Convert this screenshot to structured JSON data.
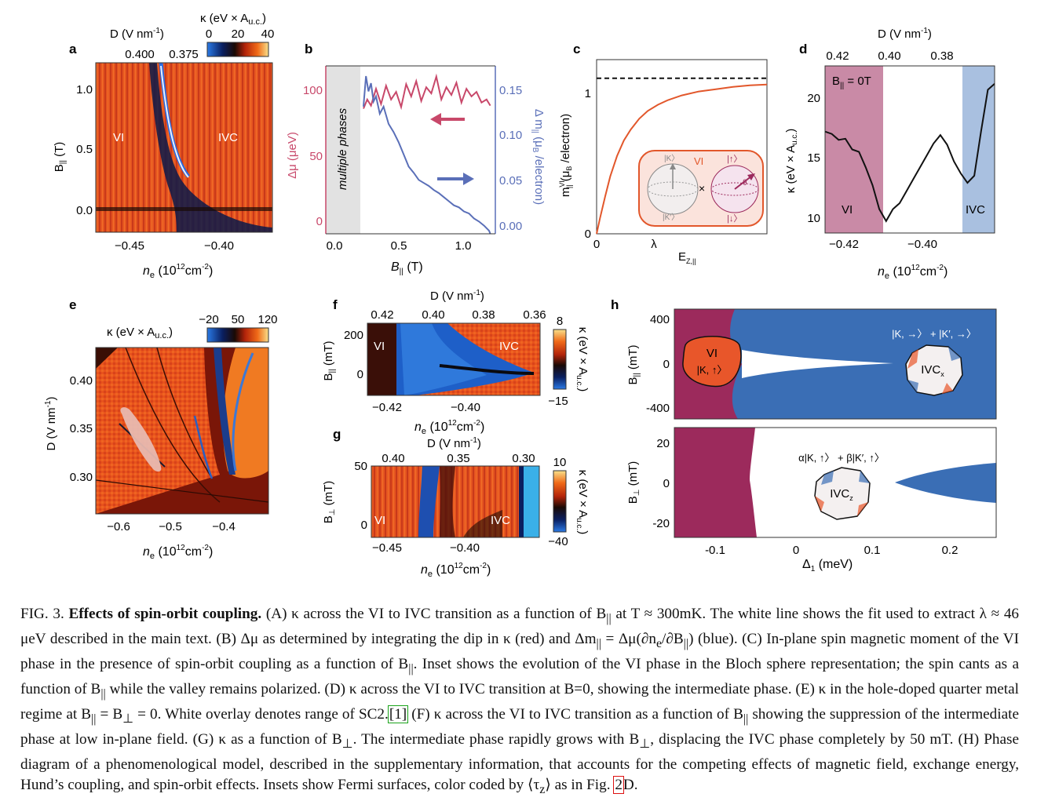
{
  "figure": {
    "panels": {
      "a": {
        "letter": "a",
        "colorbar_title": "κ (eV × A",
        "colorbar_title_sub": "u.c.",
        "colorbar_ticks": [
          "0",
          "20",
          "40"
        ],
        "top_axis_title": "D (V nm",
        "top_axis_title_sup": "-1",
        "top_ticks": [
          "0.400",
          "0.375"
        ],
        "ylabel": "B",
        "ylabel_sub": "||",
        "ylabel_unit": " (T)",
        "y_ticks": [
          "1.0",
          "0.5",
          "0.0"
        ],
        "x_ticks": [
          "−0.45",
          "−0.40"
        ],
        "xlabel": "n",
        "xlabel_sub": "e",
        "xlabel_unit": " (10",
        "xlabel_sup": "12",
        "xlabel_end": "cm",
        "xlabel_sup2": "-2",
        "xlabel_close": ")",
        "label_vi": "VI",
        "label_ivc": "IVC"
      },
      "b": {
        "letter": "b",
        "left_ticks": [
          "100",
          "50",
          "0"
        ],
        "right_ticks": [
          "0.15",
          "0.10",
          "0.05",
          "0.00"
        ],
        "x_ticks": [
          "0.0",
          "0.5",
          "1.0"
        ],
        "xlabel": "B",
        "xlabel_sub": "||",
        "xlabel_unit": " (T)",
        "ylabel_left": "Δμ (μeV)",
        "ylabel_right": "Δ m",
        "ylabel_right_sub": "||",
        "ylabel_right_unit": " (μ",
        "ylabel_right_unit_sub": "B",
        "ylabel_right_end": " /electron)",
        "shaded_label": "multiple phases",
        "chart_data": {
          "type": "line",
          "xlim": [
            -0.1,
            1.25
          ],
          "ylim_left": [
            0,
            110
          ],
          "ylim_right": [
            0.0,
            0.165
          ],
          "series": [
            {
              "axis": "left",
              "color": "#c8486a",
              "x": [
                0.2,
                0.23,
                0.26,
                0.3,
                0.34,
                0.38,
                0.42,
                0.46,
                0.5,
                0.54,
                0.58,
                0.62,
                0.66,
                0.7,
                0.74,
                0.78,
                0.82,
                0.86,
                0.9,
                0.94,
                0.98,
                1.02,
                1.06,
                1.1,
                1.14,
                1.18,
                1.21
              ],
              "y": [
                82,
                88,
                84,
                95,
                85,
                97,
                88,
                93,
                83,
                98,
                90,
                100,
                87,
                96,
                92,
                103,
                88,
                96,
                91,
                99,
                86,
                95,
                90,
                93,
                86,
                88,
                84
              ]
            },
            {
              "axis": "right",
              "color": "#5a6fb8",
              "x": [
                0.2,
                0.22,
                0.24,
                0.26,
                0.28,
                0.3,
                0.33,
                0.36,
                0.4,
                0.44,
                0.48,
                0.52,
                0.56,
                0.6,
                0.64,
                0.68,
                0.72,
                0.76,
                0.8,
                0.84,
                0.88,
                0.92,
                0.96,
                1.0,
                1.04,
                1.08,
                1.12,
                1.16,
                1.2,
                1.21
              ],
              "y": [
                0.125,
                0.155,
                0.14,
                0.148,
                0.13,
                0.135,
                0.118,
                0.125,
                0.108,
                0.1,
                0.09,
                0.078,
                0.066,
                0.06,
                0.053,
                0.05,
                0.047,
                0.043,
                0.04,
                0.036,
                0.032,
                0.028,
                0.026,
                0.022,
                0.02,
                0.015,
                0.012,
                0.008,
                0.003,
                0.0
              ]
            }
          ]
        }
      },
      "c": {
        "letter": "c",
        "y_tick_one": "1",
        "y_tick_zero": "0",
        "x_tick_zero": "0",
        "x_tick_lambda": "λ",
        "xlabel": "E",
        "xlabel_sub": "Z,||",
        "ylabel": "m",
        "ylabel_sup": "VI",
        "ylabel_sub": "||",
        "ylabel_unit": " (μ",
        "ylabel_unit_sub": "B",
        "ylabel_end": " /electron)",
        "inset_vi": "VI",
        "inset_k": "|K〉",
        "inset_kp": "|K′〉",
        "inset_up": "|↑〉",
        "inset_down": "|↓〉",
        "inset_theta": "θ",
        "inset_times": "×",
        "chart_data": {
          "type": "line",
          "xlim": [
            0,
            1
          ],
          "ylim": [
            0,
            1.12
          ],
          "series": [
            {
              "name": "",
              "color": "#e2572b",
              "x": [
                0,
                0.02,
                0.05,
                0.08,
                0.12,
                0.16,
                0.2,
                0.25,
                0.3,
                0.36,
                0.42,
                0.5,
                0.6,
                0.7,
                0.8,
                0.9,
                1.0
              ],
              "y": [
                0,
                0.1,
                0.24,
                0.37,
                0.5,
                0.6,
                0.67,
                0.74,
                0.79,
                0.83,
                0.86,
                0.89,
                0.915,
                0.93,
                0.945,
                0.955,
                0.96
              ]
            },
            {
              "name": "",
              "color": "#111111",
              "dashed": true,
              "x": [
                0,
                1
              ],
              "y": [
                1,
                1
              ]
            }
          ]
        }
      },
      "d": {
        "letter": "d",
        "top_axis_title": "D (V nm",
        "top_axis_title_sup": "-1",
        "top_ticks": [
          "0.42",
          "0.40",
          "0.38"
        ],
        "field_label": "B",
        "field_label_sub": "||",
        "field_label_value": " = 0T",
        "y_ticks": [
          "20",
          "15",
          "10"
        ],
        "x_ticks": [
          "−0.42",
          "−0.40"
        ],
        "ylabel": "κ (eV × A",
        "ylabel_sub": "u.c.",
        "ylabel_end": ")",
        "xlabel": "n",
        "xlabel_sub": "e",
        "xlabel_unit": " (10",
        "xlabel_sup": "12",
        "xlabel_end": "cm",
        "xlabel_sup2": "-2",
        "xlabel_close": ")",
        "label_vi": "VI",
        "label_ivc": "IVC",
        "vi_color": "#c98aa6",
        "ivc_color": "#a9c0e0",
        "chart_data": {
          "type": "line",
          "xlim": [
            -0.43,
            -0.38
          ],
          "ylim": [
            9,
            23
          ],
          "series": [
            {
              "name": "",
              "color": "#111111",
              "x": [
                -0.43,
                -0.428,
                -0.426,
                -0.424,
                -0.422,
                -0.42,
                -0.418,
                -0.416,
                -0.414,
                -0.412,
                -0.41,
                -0.408,
                -0.406,
                -0.404,
                -0.402,
                -0.4,
                -0.398,
                -0.396,
                -0.394,
                -0.392,
                -0.39,
                -0.388,
                -0.386,
                -0.384,
                -0.382,
                -0.38
              ],
              "y": [
                17.5,
                17.3,
                16.8,
                16.9,
                16,
                15.8,
                14.5,
                13,
                11,
                10,
                11,
                11.5,
                12.5,
                13.5,
                14.5,
                15.5,
                16.5,
                17.2,
                16.4,
                15,
                14,
                13.2,
                13.8,
                17.5,
                21,
                21.5
              ]
            }
          ]
        }
      },
      "e": {
        "letter": "e",
        "colorbar_title": "κ (eV × A",
        "colorbar_title_sub": "u.c.",
        "colorbar_ticks": [
          "−20",
          "50",
          "120"
        ],
        "y_ticks": [
          "0.40",
          "0.35",
          "0.30"
        ],
        "x_ticks": [
          "−0.6",
          "−0.5",
          "−0.4"
        ],
        "ylabel": "D (V nm",
        "ylabel_sup": "-1",
        "xlabel": "n",
        "xlabel_sub": "e",
        "xlabel_unit": " (10",
        "xlabel_sup": "12",
        "xlabel_end": "cm",
        "xlabel_sup2": "-2",
        "xlabel_close": ")"
      },
      "f": {
        "letter": "f",
        "top_axis_title": "D (V nm",
        "top_axis_title_sup": "-1",
        "top_ticks": [
          "0.42",
          "0.40",
          "0.38",
          "0.36"
        ],
        "y_ticks": [
          "200",
          "0"
        ],
        "x_ticks": [
          "−0.42",
          "−0.40"
        ],
        "colorbar_ticks": [
          "8",
          "−15"
        ],
        "ylabel": "B",
        "ylabel_sub": "||",
        "ylabel_unit": " (mT)",
        "xlabel": "n",
        "xlabel_sub": "e",
        "xlabel_unit": " (10",
        "xlabel_sup": "12",
        "xlabel_end": "cm",
        "xlabel_sup2": "-2",
        "xlabel_close": ")",
        "cb_label": "κ (eV × A",
        "cb_label_sub": "u.c.",
        "cb_label_end": ")",
        "label_vi": "VI",
        "label_ivc": "IVC"
      },
      "g": {
        "letter": "g",
        "top_axis_title": "D (V nm",
        "top_axis_title_sup": "-1",
        "top_ticks": [
          "0.40",
          "0.35",
          "0.30"
        ],
        "y_ticks": [
          "50",
          "0"
        ],
        "x_ticks": [
          "−0.45",
          "−0.40"
        ],
        "colorbar_ticks": [
          "10",
          "−40"
        ],
        "ylabel": "B",
        "ylabel_sub": "⊥",
        "ylabel_unit": " (mT)",
        "xlabel": "n",
        "xlabel_sub": "e",
        "xlabel_unit": " (10",
        "xlabel_sup": "12",
        "xlabel_end": "cm",
        "xlabel_sup2": "-2",
        "xlabel_close": ")",
        "cb_label": "κ (eV × A",
        "cb_label_sub": "u.c.",
        "cb_label_end": ")",
        "label_vi": "VI",
        "label_ivc": "IVC"
      },
      "h": {
        "letter": "h",
        "top_y_ticks": [
          "400",
          "0",
          "-400"
        ],
        "bottom_y_ticks": [
          "20",
          "0",
          "-20"
        ],
        "x_ticks": [
          "-0.1",
          "0",
          "0.1",
          "0.2"
        ],
        "top_ylabel": "B",
        "top_ylabel_sub": "||",
        "top_ylabel_unit": " (mT)",
        "bottom_ylabel": "B",
        "bottom_ylabel_sub": "⊥",
        "bottom_ylabel_unit": " (mT)",
        "xlabel": "Δ",
        "xlabel_sub": "1",
        "xlabel_unit": " (meV)",
        "vi_title": "VI",
        "vi_state": "|K, ↑〉",
        "ivcx_state": "|K, →〉 + |K′, →〉",
        "ivcx_label": "IVC",
        "ivcx_sub": "x",
        "ivcz_state": "α|K, ↑〉 + β|K′, ↑〉",
        "ivcz_label": "IVC",
        "ivcz_sub": "z",
        "vi_color": "#9c2a5c",
        "ivc_color": "#3a6eb5",
        "orange_color": "#e8562a"
      }
    }
  },
  "caption": {
    "fig": "FIG. 3.",
    "title": "Effects of spin-orbit coupling.",
    "s1": " (A) κ across the VI to IVC transition as a function of B",
    "s1_sub": "||",
    "s2": " at T ≈ 300mK. The white line shows the fit used to extract λ ≈ 46 μeV described in the main text. (B) Δμ as determined by integrating the dip in κ (red) and Δm",
    "s2_sub": "||",
    "s3": " = Δμ(∂n",
    "s3_sub": "e",
    "s4": "/∂B",
    "s4_sub": "||",
    "s5": ") (blue). (C) In-plane spin magnetic moment of the VI phase in the presence of spin-orbit coupling as a function of B",
    "s5_sub": "||",
    "s6": ". Inset shows the evolution of the VI phase in the Bloch sphere representation; the spin cants as a function of B",
    "s6_sub": "||",
    "s7": " while the valley remains polarized. (D) κ across the VI to IVC transition at B=0, showing the intermediate phase. (E) κ in the hole-doped quarter metal regime at B",
    "s7_sub": "||",
    "s8": " = B",
    "s8_sub": "⊥",
    "s9": " = 0. White overlay denotes range of SC2.",
    "ref1": "[1]",
    "s10": " (F) κ across the VI to IVC transition as a function of B",
    "s10_sub": "||",
    "s11": " showing the suppression of the intermediate phase at low in-plane field. (G) κ as a function of B",
    "s11_sub": "⊥",
    "s12": ". The intermediate phase rapidly grows with B",
    "s12_sub": "⊥",
    "s13": ", displacing the IVC phase completely by 50 mT. (H) Phase diagram of a phenomenological model, described in the supplementary information, that accounts for the competing effects of magnetic field, exchange energy, Hund’s coupling, and spin-orbit effects. Insets show Fermi surfaces, color coded by ⟨τ",
    "s13_sub": "z",
    "s14": "⟩ as in Fig. ",
    "ref2": "2",
    "s15": "D."
  }
}
